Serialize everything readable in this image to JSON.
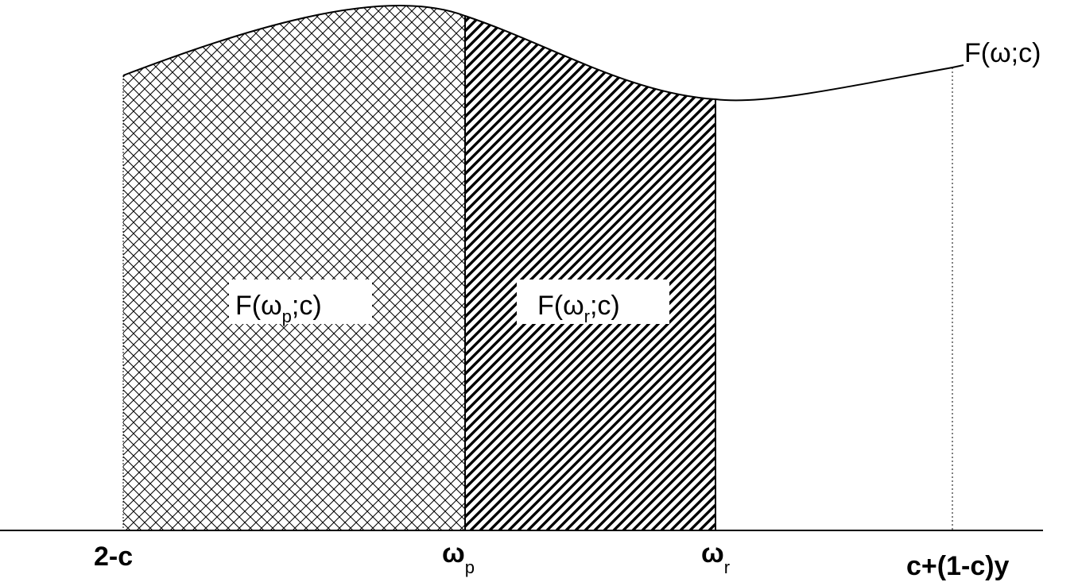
{
  "curve_label": {
    "main": "F(ω;c)"
  },
  "region_labels": {
    "left": {
      "prefix": "F(ω",
      "subscript": "p",
      "suffix": ";c)"
    },
    "right": {
      "prefix": "F(ω",
      "subscript": "r",
      "suffix": ";c)"
    }
  },
  "axis_labels": {
    "start": {
      "text": "2-c"
    },
    "omega_p": {
      "symbol": "ω",
      "subscript": "p"
    },
    "omega_r": {
      "symbol": "ω",
      "subscript": "r"
    },
    "end": {
      "text": "c+(1-c)y"
    }
  },
  "colors": {
    "line": "#000000",
    "background": "#ffffff"
  }
}
